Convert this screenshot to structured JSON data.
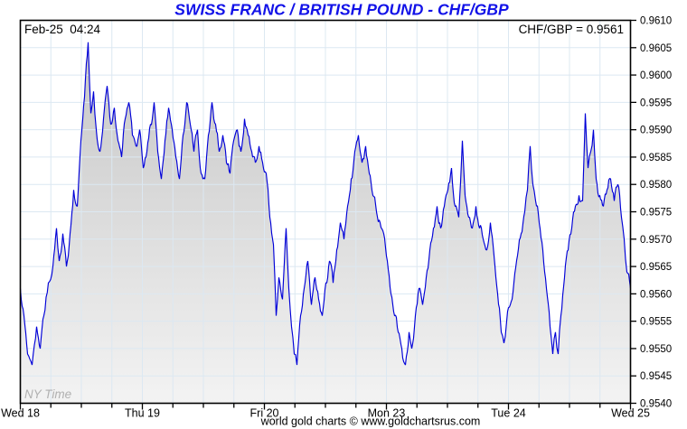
{
  "header": {
    "title": "SWISS FRANC / BRITISH POUND - CHF/GBP"
  },
  "annotations": {
    "timestamp": "Feb-25  04:24",
    "quote": "CHF/GBP = 0.9561",
    "timezone_note": "NY Time"
  },
  "footer": {
    "credit": "world gold charts © www.goldchartsrus.com"
  },
  "colors": {
    "title": "#1212e8",
    "line": "#0000d8",
    "grid": "#dce8f2",
    "frame": "#000000",
    "fill_top": "#c3c3c3",
    "fill_bottom": "#f3f3f3",
    "ny_time": "#b0b0b0",
    "text": "#000000"
  },
  "chart_data": {
    "type": "line",
    "title": "SWISS FRANC / BRITISH POUND - CHF/GBP",
    "pair": "CHF/GBP",
    "last_value": 0.9561,
    "legend": "none",
    "grid": true,
    "fill": "gray-gradient-under-line",
    "x_axis": {
      "labels": [
        "Wed 18",
        "Thu 19",
        "Fri 20",
        "Mon 23",
        "Tue 24",
        "Wed 25"
      ],
      "minor_divisions_per_day": 4
    },
    "y_axis": {
      "min": 0.954,
      "max": 0.961,
      "step": 0.0005,
      "labels": [
        "0.9610",
        "0.9605",
        "0.9600",
        "0.9595",
        "0.9590",
        "0.9585",
        "0.9580",
        "0.9575",
        "0.9570",
        "0.9565",
        "0.9560",
        "0.9555",
        "0.9550",
        "0.9545",
        "0.9540"
      ]
    },
    "series": [
      {
        "name": "CHF/GBP",
        "points": [
          [
            0,
            0.9561
          ],
          [
            4,
            0.9556
          ],
          [
            8,
            0.9549
          ],
          [
            13,
            0.9547
          ],
          [
            18,
            0.9554
          ],
          [
            22,
            0.955
          ],
          [
            26,
            0.9556
          ],
          [
            31,
            0.9562
          ],
          [
            36,
            0.9565
          ],
          [
            40,
            0.9572
          ],
          [
            43,
            0.9566
          ],
          [
            47,
            0.9571
          ],
          [
            51,
            0.9565
          ],
          [
            55,
            0.9571
          ],
          [
            59,
            0.9579
          ],
          [
            63,
            0.9576
          ],
          [
            67,
            0.9588
          ],
          [
            71,
            0.9596
          ],
          [
            75,
            0.9606
          ],
          [
            78,
            0.9593
          ],
          [
            81,
            0.9597
          ],
          [
            84,
            0.959
          ],
          [
            88,
            0.9586
          ],
          [
            92,
            0.9592
          ],
          [
            96,
            0.9598
          ],
          [
            100,
            0.9591
          ],
          [
            104,
            0.9594
          ],
          [
            108,
            0.9588
          ],
          [
            112,
            0.9585
          ],
          [
            116,
            0.9592
          ],
          [
            120,
            0.9595
          ],
          [
            124,
            0.9589
          ],
          [
            128,
            0.9587
          ],
          [
            132,
            0.959
          ],
          [
            136,
            0.9583
          ],
          [
            140,
            0.9586
          ],
          [
            144,
            0.9591
          ],
          [
            148,
            0.9595
          ],
          [
            152,
            0.9586
          ],
          [
            156,
            0.9581
          ],
          [
            160,
            0.9588
          ],
          [
            164,
            0.9594
          ],
          [
            168,
            0.959
          ],
          [
            172,
            0.9585
          ],
          [
            176,
            0.9581
          ],
          [
            180,
            0.9589
          ],
          [
            184,
            0.9595
          ],
          [
            188,
            0.9591
          ],
          [
            192,
            0.9586
          ],
          [
            196,
            0.959
          ],
          [
            200,
            0.9582
          ],
          [
            204,
            0.9581
          ],
          [
            208,
            0.9589
          ],
          [
            212,
            0.9595
          ],
          [
            216,
            0.9591
          ],
          [
            220,
            0.9586
          ],
          [
            224,
            0.9589
          ],
          [
            228,
            0.9584
          ],
          [
            232,
            0.9582
          ],
          [
            236,
            0.9588
          ],
          [
            240,
            0.959
          ],
          [
            244,
            0.9586
          ],
          [
            248,
            0.9592
          ],
          [
            252,
            0.9589
          ],
          [
            256,
            0.9586
          ],
          [
            260,
            0.9584
          ],
          [
            264,
            0.9587
          ],
          [
            268,
            0.9584
          ],
          [
            272,
            0.9582
          ],
          [
            276,
            0.9574
          ],
          [
            280,
            0.9569
          ],
          [
            283,
            0.9556
          ],
          [
            286,
            0.9563
          ],
          [
            290,
            0.9559
          ],
          [
            294,
            0.9572
          ],
          [
            297,
            0.9561
          ],
          [
            300,
            0.9554
          ],
          [
            303,
            0.9549
          ],
          [
            306,
            0.9547
          ],
          [
            310,
            0.9556
          ],
          [
            314,
            0.9561
          ],
          [
            318,
            0.9566
          ],
          [
            322,
            0.9558
          ],
          [
            326,
            0.9563
          ],
          [
            330,
            0.9559
          ],
          [
            334,
            0.9556
          ],
          [
            338,
            0.9562
          ],
          [
            342,
            0.9566
          ],
          [
            346,
            0.9562
          ],
          [
            350,
            0.9568
          ],
          [
            354,
            0.9573
          ],
          [
            358,
            0.957
          ],
          [
            362,
            0.9576
          ],
          [
            366,
            0.9581
          ],
          [
            370,
            0.9586
          ],
          [
            374,
            0.9589
          ],
          [
            378,
            0.9584
          ],
          [
            382,
            0.9587
          ],
          [
            386,
            0.9582
          ],
          [
            390,
            0.9578
          ],
          [
            394,
            0.9575
          ],
          [
            398,
            0.9573
          ],
          [
            402,
            0.9571
          ],
          [
            406,
            0.9566
          ],
          [
            410,
            0.956
          ],
          [
            414,
            0.9556
          ],
          [
            418,
            0.9553
          ],
          [
            422,
            0.955
          ],
          [
            426,
            0.9547
          ],
          [
            430,
            0.9553
          ],
          [
            433,
            0.955
          ],
          [
            437,
            0.9556
          ],
          [
            441,
            0.9561
          ],
          [
            445,
            0.9558
          ],
          [
            449,
            0.9563
          ],
          [
            453,
            0.9568
          ],
          [
            457,
            0.9572
          ],
          [
            461,
            0.9576
          ],
          [
            465,
            0.9572
          ],
          [
            469,
            0.9576
          ],
          [
            473,
            0.9579
          ],
          [
            477,
            0.9583
          ],
          [
            481,
            0.9576
          ],
          [
            485,
            0.9574
          ],
          [
            489,
            0.9588
          ],
          [
            492,
            0.9578
          ],
          [
            496,
            0.9574
          ],
          [
            500,
            0.9572
          ],
          [
            504,
            0.9576
          ],
          [
            508,
            0.9572
          ],
          [
            512,
            0.957
          ],
          [
            516,
            0.9568
          ],
          [
            520,
            0.9573
          ],
          [
            524,
            0.9567
          ],
          [
            528,
            0.956
          ],
          [
            532,
            0.9553
          ],
          [
            535,
            0.9551
          ],
          [
            538,
            0.9555
          ],
          [
            542,
            0.9558
          ],
          [
            546,
            0.9562
          ],
          [
            550,
            0.9567
          ],
          [
            554,
            0.9571
          ],
          [
            558,
            0.9575
          ],
          [
            561,
            0.9579
          ],
          [
            564,
            0.9587
          ],
          [
            567,
            0.958
          ],
          [
            570,
            0.9577
          ],
          [
            574,
            0.9573
          ],
          [
            578,
            0.9568
          ],
          [
            582,
            0.9561
          ],
          [
            586,
            0.9554
          ],
          [
            589,
            0.9549
          ],
          [
            592,
            0.9553
          ],
          [
            595,
            0.9549
          ],
          [
            598,
            0.9556
          ],
          [
            602,
            0.9563
          ],
          [
            606,
            0.9568
          ],
          [
            610,
            0.9572
          ],
          [
            614,
            0.9576
          ],
          [
            618,
            0.9578
          ],
          [
            622,
            0.9577
          ],
          [
            625,
            0.9593
          ],
          [
            628,
            0.9583
          ],
          [
            631,
            0.9586
          ],
          [
            634,
            0.959
          ],
          [
            637,
            0.9581
          ],
          [
            641,
            0.9578
          ],
          [
            645,
            0.9576
          ],
          [
            649,
            0.9579
          ],
          [
            653,
            0.9581
          ],
          [
            657,
            0.9577
          ],
          [
            661,
            0.958
          ],
          [
            665,
            0.9574
          ],
          [
            668,
            0.957
          ],
          [
            671,
            0.9564
          ],
          [
            675,
            0.9561
          ]
        ]
      }
    ]
  }
}
